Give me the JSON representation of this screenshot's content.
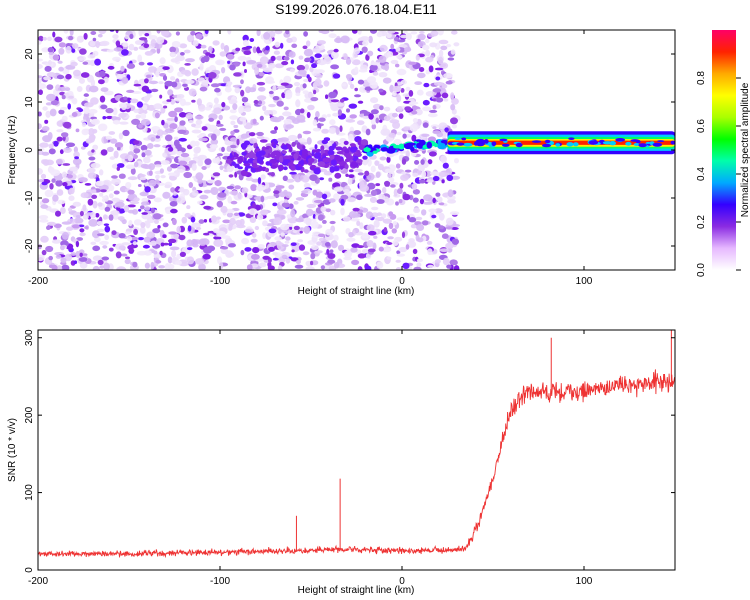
{
  "title": "S199.2026.076.18.04.E11",
  "chart_data": [
    {
      "type": "heatmap",
      "xlabel": "Height of straight line (km)",
      "ylabel": "Frequency (Hz)",
      "xlim": [
        -200,
        150
      ],
      "ylim": [
        -25,
        25
      ],
      "xticks": [
        -200,
        -100,
        0,
        100
      ],
      "yticks": [
        20,
        10,
        0,
        -10,
        -20
      ],
      "colorbar": {
        "label": "Normalized spectral amplitude",
        "range": [
          0,
          1
        ],
        "ticks": [
          "0.0",
          "0.2",
          "0.4",
          "0.6",
          "0.8"
        ],
        "colors": [
          "#ffffff",
          "#e6b8ff",
          "#8a2be2",
          "#3300ff",
          "#00aaff",
          "#00ffaa",
          "#00ff00",
          "#aaff00",
          "#ffff00",
          "#ffaa00",
          "#ff2200",
          "#ff0066"
        ]
      },
      "features": {
        "diffuse_noise_x_range": [
          -200,
          30
        ],
        "signal_onset_x": -20,
        "signal_frequency_start_hz": 0,
        "signal_frequency_end_hz": 2.5,
        "signal_x_range": [
          -20,
          150
        ]
      }
    },
    {
      "type": "line",
      "xlabel": "Height of straight line (km)",
      "ylabel": "SNR (10 * v/v)",
      "xlim": [
        -200,
        150
      ],
      "ylim": [
        0,
        310
      ],
      "xticks": [
        -200,
        -100,
        0,
        100
      ],
      "yticks": [
        0,
        100,
        200,
        300
      ],
      "line_color": "#ee3333",
      "series": [
        {
          "name": "",
          "x": [
            -200,
            -150,
            -100,
            -60,
            -50,
            -34,
            -20,
            0,
            20,
            35,
            42,
            50,
            55,
            60,
            65,
            70,
            80,
            100,
            120,
            150
          ],
          "y": [
            20,
            21,
            23,
            25,
            26,
            27,
            26,
            25,
            25,
            27,
            60,
            120,
            165,
            205,
            225,
            230,
            228,
            232,
            238,
            245
          ]
        }
      ],
      "annotations": {
        "spikes": [
          {
            "x": -34,
            "y": 118
          },
          {
            "x": -58,
            "y": 70
          },
          {
            "x": 82,
            "y": 300
          },
          {
            "x": 148,
            "y": 310
          }
        ]
      }
    }
  ]
}
